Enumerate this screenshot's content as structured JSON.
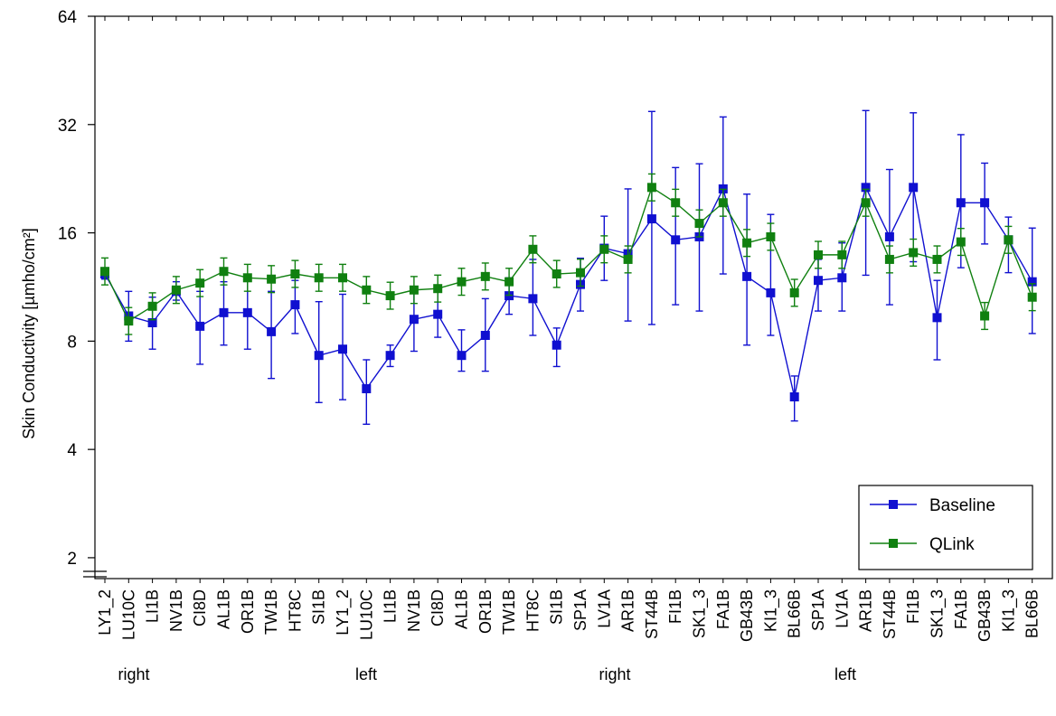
{
  "chart_data": {
    "type": "line",
    "xlabel": "",
    "ylabel": "Skin Conductivity [µmho/cm²]",
    "y_scale": "log2",
    "ylim": [
      1.75,
      64
    ],
    "yticks": [
      "2",
      "4",
      "8",
      "16",
      "32",
      "64"
    ],
    "ytick_values": [
      2,
      4,
      8,
      16,
      32,
      64
    ],
    "categories": [
      "LY1_2",
      "LU10C",
      "LI1B",
      "NV1B",
      "CI8D",
      "AL1B",
      "OR1B",
      "TW1B",
      "HT8C",
      "SI1B",
      "LY1_2",
      "LU10C",
      "LI1B",
      "NV1B",
      "CI8D",
      "AL1B",
      "OR1B",
      "TW1B",
      "HT8C",
      "SI1B",
      "SP1A",
      "LV1A",
      "AR1B",
      "ST44B",
      "FI1B",
      "SK1_3",
      "FA1B",
      "GB43B",
      "KI1_3",
      "BL66B",
      "SP1A",
      "LV1A",
      "AR1B",
      "ST44B",
      "FI1B",
      "SK1_3",
      "FA1B",
      "GB43B",
      "KI1_3",
      "BL66B"
    ],
    "groups": [
      {
        "label": "right",
        "from": 0,
        "to": 9
      },
      {
        "label": "left",
        "from": 10,
        "to": 19
      },
      {
        "label": "right",
        "from": 20,
        "to": 29
      },
      {
        "label": "left",
        "from": 30,
        "to": 39
      }
    ],
    "series": [
      {
        "name": "Baseline",
        "color": "#1010d0",
        "values": [
          12.3,
          9.4,
          9.0,
          11.0,
          8.8,
          9.6,
          9.6,
          8.5,
          10.1,
          7.3,
          7.6,
          5.9,
          7.3,
          9.2,
          9.5,
          7.3,
          8.3,
          10.7,
          10.5,
          7.8,
          11.5,
          14.5,
          14.0,
          17.5,
          15.3,
          15.6,
          21.2,
          12.1,
          10.9,
          5.6,
          11.8,
          12.0,
          21.4,
          15.6,
          21.4,
          9.3,
          19.4,
          19.4,
          15.3,
          11.7
        ],
        "lower": [
          11.9,
          8.0,
          7.6,
          10.4,
          6.9,
          7.8,
          7.6,
          6.3,
          8.4,
          5.4,
          5.5,
          4.7,
          6.8,
          7.5,
          8.2,
          6.6,
          6.6,
          9.5,
          8.3,
          6.8,
          9.7,
          11.8,
          9.1,
          8.9,
          10.1,
          9.7,
          12.3,
          7.8,
          8.3,
          4.8,
          9.7,
          9.7,
          12.2,
          10.1,
          13.3,
          7.1,
          12.8,
          14.9,
          12.4,
          8.4
        ],
        "upper": [
          12.8,
          11.0,
          10.6,
          11.7,
          11.0,
          11.7,
          11.9,
          11.0,
          11.8,
          10.3,
          10.8,
          7.1,
          7.8,
          11.3,
          11.0,
          8.6,
          10.5,
          12.0,
          13.5,
          8.7,
          13.6,
          17.8,
          21.2,
          34.8,
          24.3,
          24.9,
          33.6,
          20.5,
          18.0,
          6.4,
          13.5,
          15.0,
          35.0,
          24.0,
          34.5,
          11.8,
          30.0,
          25.0,
          17.7,
          16.5
        ]
      },
      {
        "name": "QLink",
        "color": "#108010",
        "values": [
          12.5,
          9.1,
          10.0,
          11.1,
          11.6,
          12.5,
          12.0,
          11.9,
          12.3,
          12.0,
          12.0,
          11.1,
          10.7,
          11.1,
          11.2,
          11.7,
          12.1,
          11.7,
          14.4,
          12.3,
          12.4,
          14.4,
          13.5,
          21.4,
          19.4,
          17.0,
          19.4,
          15.0,
          15.6,
          10.9,
          13.9,
          13.9,
          19.4,
          13.5,
          14.1,
          13.5,
          15.1,
          9.4,
          15.3,
          10.6
        ]
      }
    ]
  }
}
